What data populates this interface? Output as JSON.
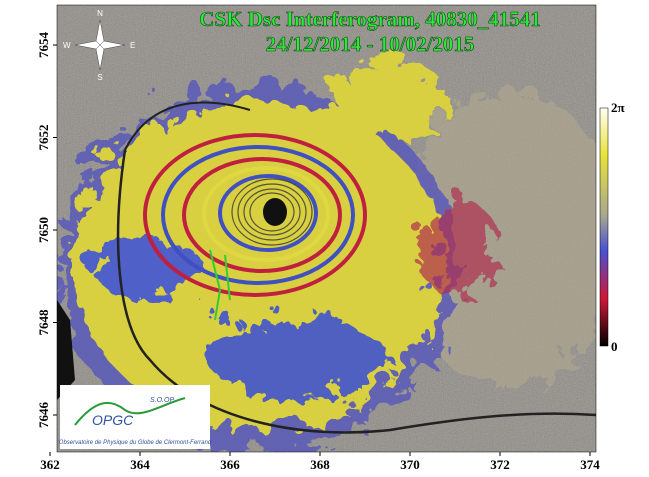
{
  "title": [
    "CSK Dsc Interferogram, 40830_41541",
    "24/12/2014 - 10/02/2015"
  ],
  "x_axis": {
    "ticks": [
      362,
      364,
      366,
      368,
      370,
      372,
      374
    ]
  },
  "y_axis": {
    "ticks": [
      7646,
      7648,
      7650,
      7652,
      7654
    ]
  },
  "colorbar": {
    "top_label": "2π",
    "bottom_label": "0"
  },
  "compass": {
    "north": "N",
    "south": "S",
    "east": "E",
    "west": "W"
  },
  "logo": {
    "acronym": "OPGC",
    "tag": "S.O.OP",
    "name": "Observatoire de Physique du Globe de Clermont-Ferrand"
  }
}
